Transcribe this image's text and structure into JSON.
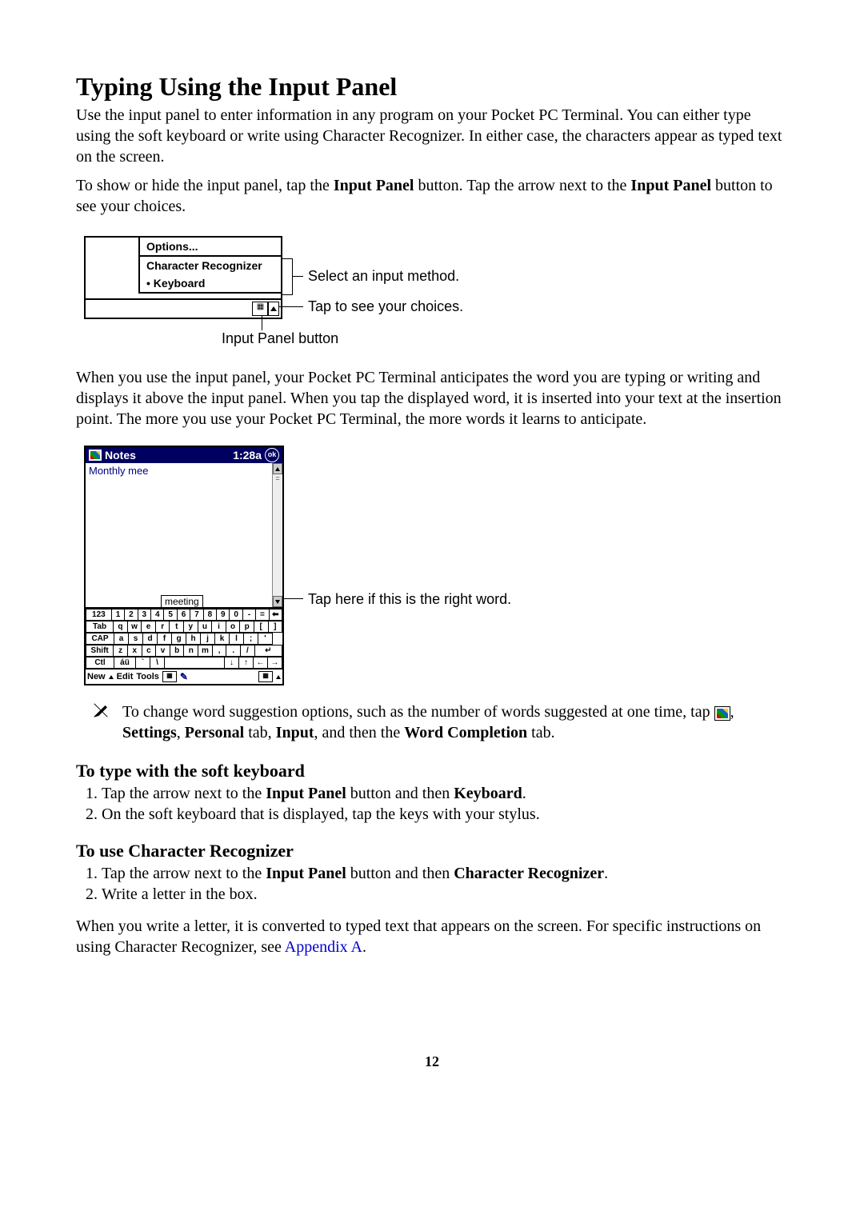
{
  "title": "Typing Using the Input Panel",
  "intro": "Use the input panel to enter information in any program on your Pocket PC Terminal. You can either type using the soft keyboard or write using Character Recognizer. In either case, the characters appear as typed text on the screen.",
  "show_hide_pre": "To show or hide the input panel, tap the ",
  "bold_input_panel": "Input Panel",
  "show_hide_mid": " button. Tap the arrow next to the ",
  "bold_input_panel2": "Input Panel",
  "show_hide_post": " button to see your choices.",
  "fig1": {
    "options": "Options...",
    "char_rec": "Character Recognizer",
    "keyboard": "Keyboard",
    "label_select": "Select an input method.",
    "label_tap": "Tap to see your choices.",
    "label_button": "Input Panel button"
  },
  "anticipate": "When you use the input panel, your Pocket PC Terminal anticipates the word you are typing or writing and displays it above the input panel. When you tap the displayed word, it is inserted into your text at the insertion point. The more you use your Pocket PC Terminal, the more words it learns to anticipate.",
  "fig2": {
    "title": "Notes",
    "time": "1:28a",
    "ok": "ok",
    "body_text": "Monthly mee",
    "suggest": "meeting",
    "kb_rows": [
      [
        "123",
        "1",
        "2",
        "3",
        "4",
        "5",
        "6",
        "7",
        "8",
        "9",
        "0",
        "-",
        "=",
        "⬅"
      ],
      [
        "Tab",
        "q",
        "w",
        "e",
        "r",
        "t",
        "y",
        "u",
        "i",
        "o",
        "p",
        "[",
        "]"
      ],
      [
        "CAP",
        "a",
        "s",
        "d",
        "f",
        "g",
        "h",
        "j",
        "k",
        "l",
        ";",
        "'"
      ],
      [
        "Shift",
        "z",
        "x",
        "c",
        "v",
        "b",
        "n",
        "m",
        ",",
        ".",
        "/",
        "↵"
      ],
      [
        "Ctl",
        "áü",
        "`",
        "\\",
        " ",
        "↓",
        "↑",
        "←",
        "→"
      ]
    ],
    "bottom": {
      "new": "New",
      "edit": "Edit",
      "tools": "Tools"
    },
    "callout": "Tap here if this is the right word."
  },
  "note": {
    "pre": "To change word suggestion options, such as the number of words suggested at one time, tap ",
    "settings": "Settings",
    "personal": "Personal",
    "tab_word": " tab, ",
    "input": "Input",
    "and_then": ", and then the ",
    "word_completion": "Word Completion",
    "post": " tab."
  },
  "soft_kb": {
    "heading": "To type with the soft keyboard",
    "step1_pre": "Tap the arrow next to the ",
    "step1_mid": " button and then ",
    "step1_kb": "Keyboard",
    "step1_post": ".",
    "step2": "On the soft keyboard that is displayed, tap the keys with your stylus."
  },
  "char_rec": {
    "heading": "To use Character Recognizer",
    "step1_pre": "Tap the arrow next to the ",
    "step1_mid": " button and then ",
    "step1_cr": "Character Recognizer",
    "step1_post": ".",
    "step2": "Write a letter in the box."
  },
  "closing_pre": "When you write a letter, it is converted to typed text that appears on the screen. For specific instructions on using Character Recognizer, see ",
  "closing_link": "Appendix A",
  "closing_post": ".",
  "page_number": "12"
}
